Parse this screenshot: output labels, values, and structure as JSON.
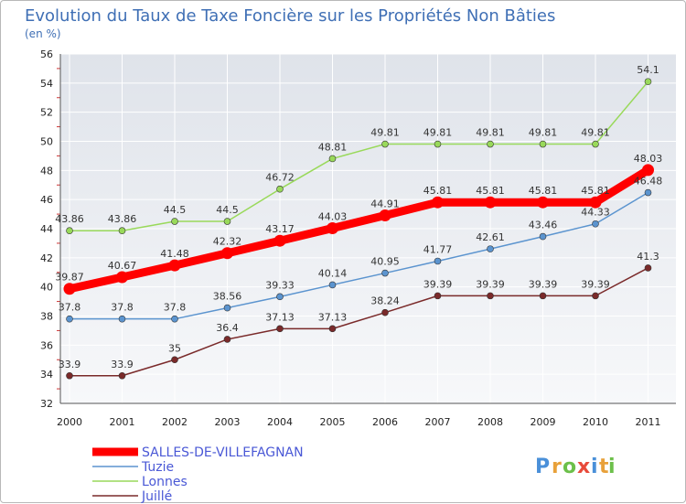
{
  "chart_data": {
    "type": "line",
    "title": "Evolution du Taux de Taxe Foncière sur les Propriétés Non Bâties",
    "unit_label": "(en %)",
    "x": [
      "2000",
      "2001",
      "2002",
      "2003",
      "2004",
      "2005",
      "2006",
      "2007",
      "2008",
      "2009",
      "2010",
      "2011"
    ],
    "ylim": [
      32,
      56
    ],
    "yticks": [
      "32",
      "34",
      "36",
      "38",
      "40",
      "42",
      "44",
      "46",
      "48",
      "50",
      "52",
      "54",
      "56"
    ],
    "grid": true,
    "legend_position": "bottom-left",
    "series": [
      {
        "name": "SALLES-DE-VILLEFAGNAN",
        "color": "#ff0000",
        "values": [
          39.87,
          40.67,
          41.48,
          42.32,
          43.17,
          44.03,
          44.91,
          45.81,
          45.81,
          45.81,
          45.81,
          48.03
        ],
        "labels": [
          "39.87",
          "40.67",
          "41.48",
          "42.32",
          "43.17",
          "44.03",
          "44.91",
          "45.81",
          "45.81",
          "45.81",
          "45.81",
          "48.03"
        ]
      },
      {
        "name": "Tuzie",
        "color": "#5b94cf",
        "values": [
          37.8,
          37.8,
          37.8,
          38.56,
          39.33,
          40.14,
          40.95,
          41.77,
          42.61,
          43.46,
          44.33,
          46.48
        ],
        "labels": [
          "37.8",
          "37.8",
          "37.8",
          "38.56",
          "39.33",
          "40.14",
          "40.95",
          "41.77",
          "42.61",
          "43.46",
          "44.33",
          "46.48"
        ]
      },
      {
        "name": "Lonnes",
        "color": "#99d95a",
        "values": [
          43.86,
          43.86,
          44.5,
          44.5,
          46.72,
          48.81,
          49.81,
          49.81,
          49.81,
          49.81,
          49.81,
          54.1
        ],
        "labels": [
          "43.86",
          "43.86",
          "44.5",
          "44.5",
          "46.72",
          "48.81",
          "49.81",
          "49.81",
          "49.81",
          "49.81",
          "49.81",
          "54.1"
        ]
      },
      {
        "name": "Juillé",
        "color": "#7a2a2a",
        "values": [
          33.9,
          33.9,
          35,
          36.4,
          37.13,
          37.13,
          38.24,
          39.39,
          39.39,
          39.39,
          39.39,
          41.3
        ],
        "labels": [
          "33.9",
          "33.9",
          "35",
          "36.4",
          "37.13",
          "37.13",
          "38.24",
          "39.39",
          "39.39",
          "39.39",
          "39.39",
          "41.3"
        ]
      }
    ]
  },
  "logo": {
    "letters": [
      "P",
      "r",
      "o",
      "x",
      "i",
      "t",
      "i"
    ],
    "colors": [
      "#4a90d9",
      "#e8a13a",
      "#6cc04a",
      "#e84a3a",
      "#4a90d9",
      "#e8a13a",
      "#6cc04a"
    ]
  }
}
